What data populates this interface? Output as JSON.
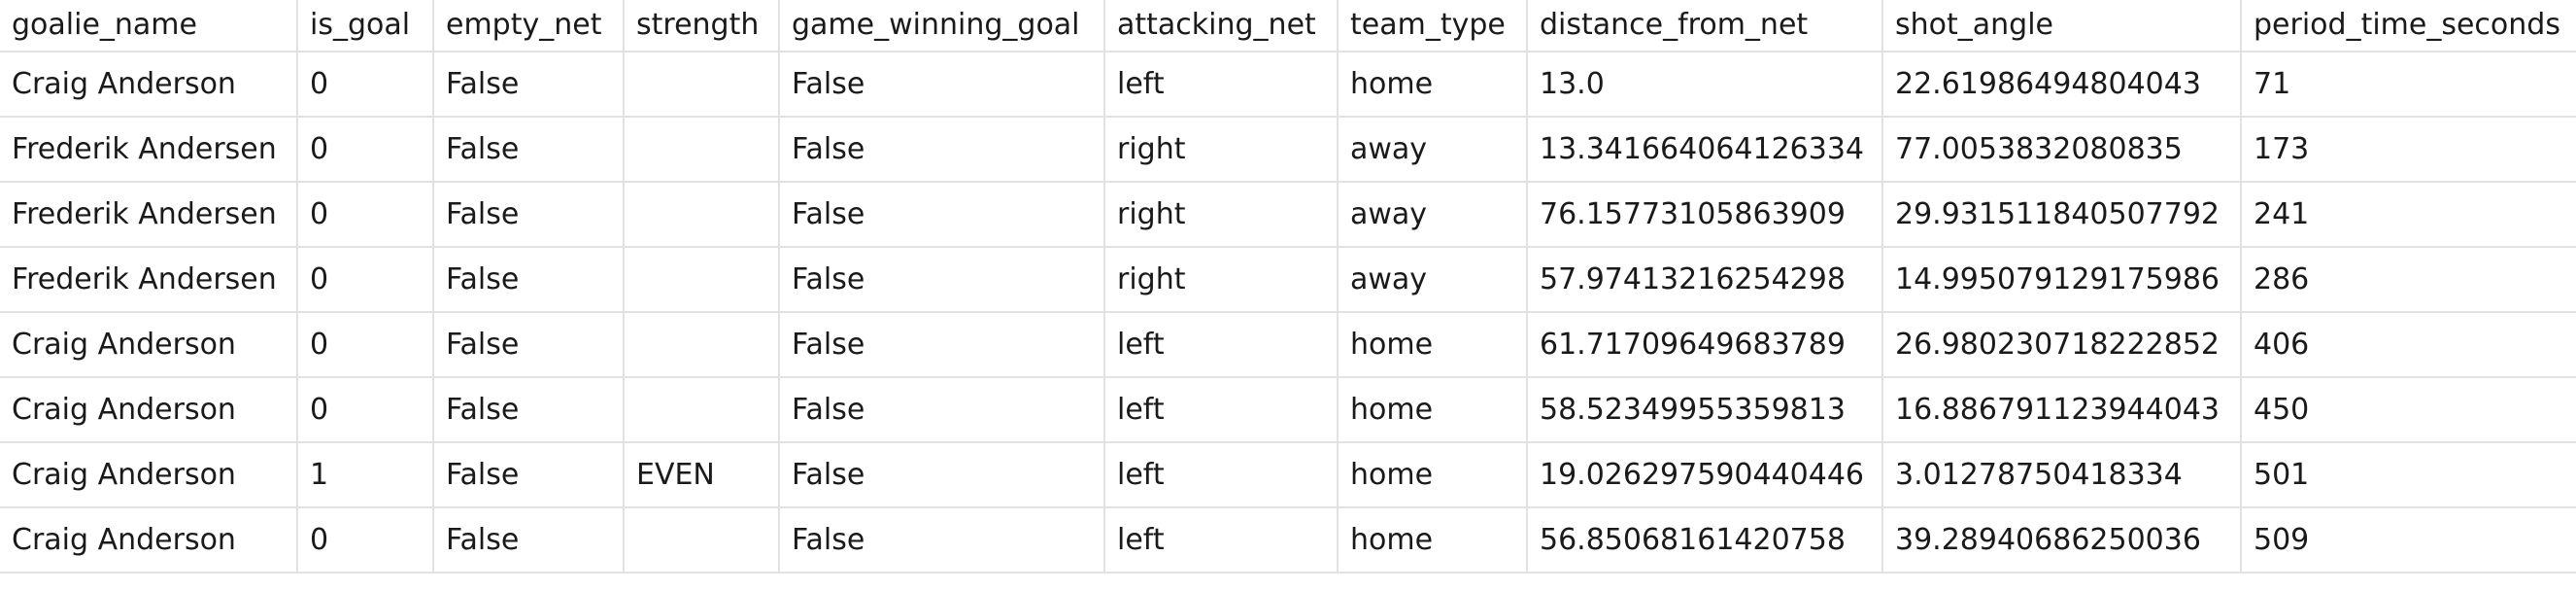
{
  "table": {
    "columns": [
      "goalie_name",
      "is_goal",
      "empty_net",
      "strength",
      "game_winning_goal",
      "attacking_net",
      "team_type",
      "distance_from_net",
      "shot_angle",
      "period_time_seconds"
    ],
    "rows": [
      [
        "Craig Anderson",
        "0",
        "False",
        "",
        "False",
        "left",
        "home",
        "13.0",
        "22.61986494804043",
        "71"
      ],
      [
        "Frederik Andersen",
        "0",
        "False",
        "",
        "False",
        "right",
        "away",
        "13.341664064126334",
        "77.0053832080835",
        "173"
      ],
      [
        "Frederik Andersen",
        "0",
        "False",
        "",
        "False",
        "right",
        "away",
        "76.15773105863909",
        "29.931511840507792",
        "241"
      ],
      [
        "Frederik Andersen",
        "0",
        "False",
        "",
        "False",
        "right",
        "away",
        "57.97413216254298",
        "14.995079129175986",
        "286"
      ],
      [
        "Craig Anderson",
        "0",
        "False",
        "",
        "False",
        "left",
        "home",
        "61.71709649683789",
        "26.980230718222852",
        "406"
      ],
      [
        "Craig Anderson",
        "0",
        "False",
        "",
        "False",
        "left",
        "home",
        "58.52349955359813",
        "16.886791123944043",
        "450"
      ],
      [
        "Craig Anderson",
        "1",
        "False",
        "EVEN",
        "False",
        "left",
        "home",
        "19.026297590440446",
        "3.01278750418334",
        "501"
      ],
      [
        "Craig Anderson",
        "0",
        "False",
        "",
        "False",
        "left",
        "home",
        "56.85068161420758",
        "39.28940686250036",
        "509"
      ]
    ]
  }
}
